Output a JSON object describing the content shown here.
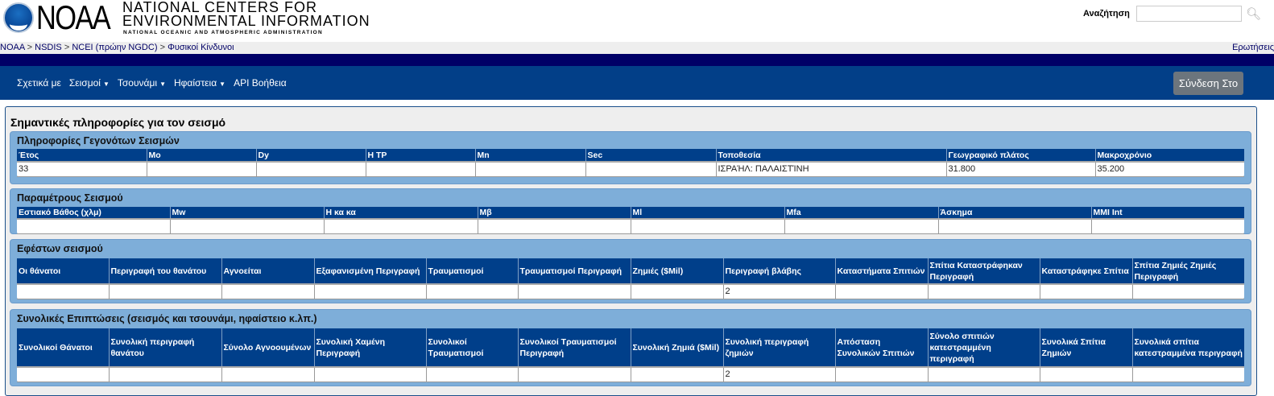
{
  "header": {
    "logo_text": "NOAA",
    "org_line1": "NATIONAL CENTERS FOR",
    "org_line2": "ENVIRONMENTAL INFORMATION",
    "org_line3": "NATIONAL OCEANIC AND ATMOSPHERIC ADMINISTRATION",
    "search_label": "Αναζήτηση",
    "search_value": "",
    "search_icon": "magnifier-icon"
  },
  "breadcrumb": {
    "items": [
      "NOAA",
      "NSDIS",
      "NCEI (πρώην NGDC)",
      "Φυσικοί Κίνδυνοι"
    ],
    "separator": ">",
    "right_link": "Ερωτήσεις"
  },
  "nav": {
    "items": [
      {
        "label": "Σχετικά με",
        "dropdown": false
      },
      {
        "label": "Σεισμοί",
        "dropdown": true
      },
      {
        "label": "Τσουνάμι",
        "dropdown": true
      },
      {
        "label": "Ηφαίστεια",
        "dropdown": true
      },
      {
        "label": "API Βοήθεια",
        "dropdown": false
      }
    ],
    "login": "Σύνδεση Στο"
  },
  "main": {
    "title": "Σημαντικές πληροφορίες για τον σεισμό",
    "sections": [
      {
        "title": "Πληροφορίες Γεγονότων Σεισμών",
        "headers": [
          "Έτος",
          "Mo",
          "Dy",
          "H TP",
          "Mn",
          "Sec",
          "Τοποθεσία",
          "Γεωγραφικό πλάτος",
          "Μακροχρόνιο"
        ],
        "row": [
          "33",
          "",
          "",
          "",
          "",
          "",
          "ΙΣΡΑΉΛ: ΠΑΛΑΙΣΤΊΝΗ",
          "31.800",
          "35.200"
        ]
      },
      {
        "title": "Παραμέτρους Σεισμού",
        "headers": [
          "Εστιακό Βάθος (χλμ)",
          "Mw",
          "Η κα κα",
          "Mβ",
          "Ml",
          "Mfa",
          "Άσκημα",
          "MMI Int"
        ],
        "row": [
          "",
          "",
          "",
          "",
          "",
          "",
          "",
          ""
        ]
      },
      {
        "title": "Εφέστων σεισμού",
        "headers": [
          "Οι θάνατοι",
          "Περιγραφή του θανάτου",
          "Αγνοείται",
          "Εξαφανισμένη Περιγραφή",
          "Τραυματισμοί",
          "Τραυματισμοί Περιγραφή",
          "Ζημιές ($Mil)",
          "Περιγραφή βλάβης",
          "Καταστήματα Σπιτιών",
          "Σπίτια Καταστράφηκαν Περιγραφή",
          "Καταστράφηκε Σπίτια",
          "Σπίτια Ζημιές Ζημιές Περιγραφή"
        ],
        "row": [
          "",
          "",
          "",
          "",
          "",
          "",
          "",
          "2",
          "",
          "",
          "",
          ""
        ]
      },
      {
        "title": "Συνολικές Επιπτώσεις (σεισμός και τσουνάμι, ηφαίστειο κ.λπ.)",
        "headers": [
          "Συνολικοί Θάνατοι",
          "Συνολική περιγραφή θανάτου",
          "Σύνολο Αγνοουμένων",
          "Συνολική Χαμένη Περιγραφή",
          "Συνολικοί Τραυματισμοί",
          "Συνολικοί Τραυματισμοί Περιγραφή",
          "Συνολική Ζημιά ($Mil)",
          "Συνολική περιγραφή ζημιών",
          "Απόσταση Συνολικών Σπιτιών",
          "Σύνολο σπιτιών κατεστραμμένη περιγραφή",
          "Συνολικά Σπίτια Ζημιών",
          "Συνολικά σπίτια κατεστραμμένα περιγραφή"
        ],
        "row": [
          "",
          "",
          "",
          "",
          "",
          "",
          "",
          "2",
          "",
          "",
          "",
          ""
        ]
      }
    ]
  },
  "colors": {
    "nav_bg": "#023f88",
    "navy_bar": "#000066",
    "panel_bg": "#7eaed9",
    "table_header_bg": "#003f8a"
  }
}
